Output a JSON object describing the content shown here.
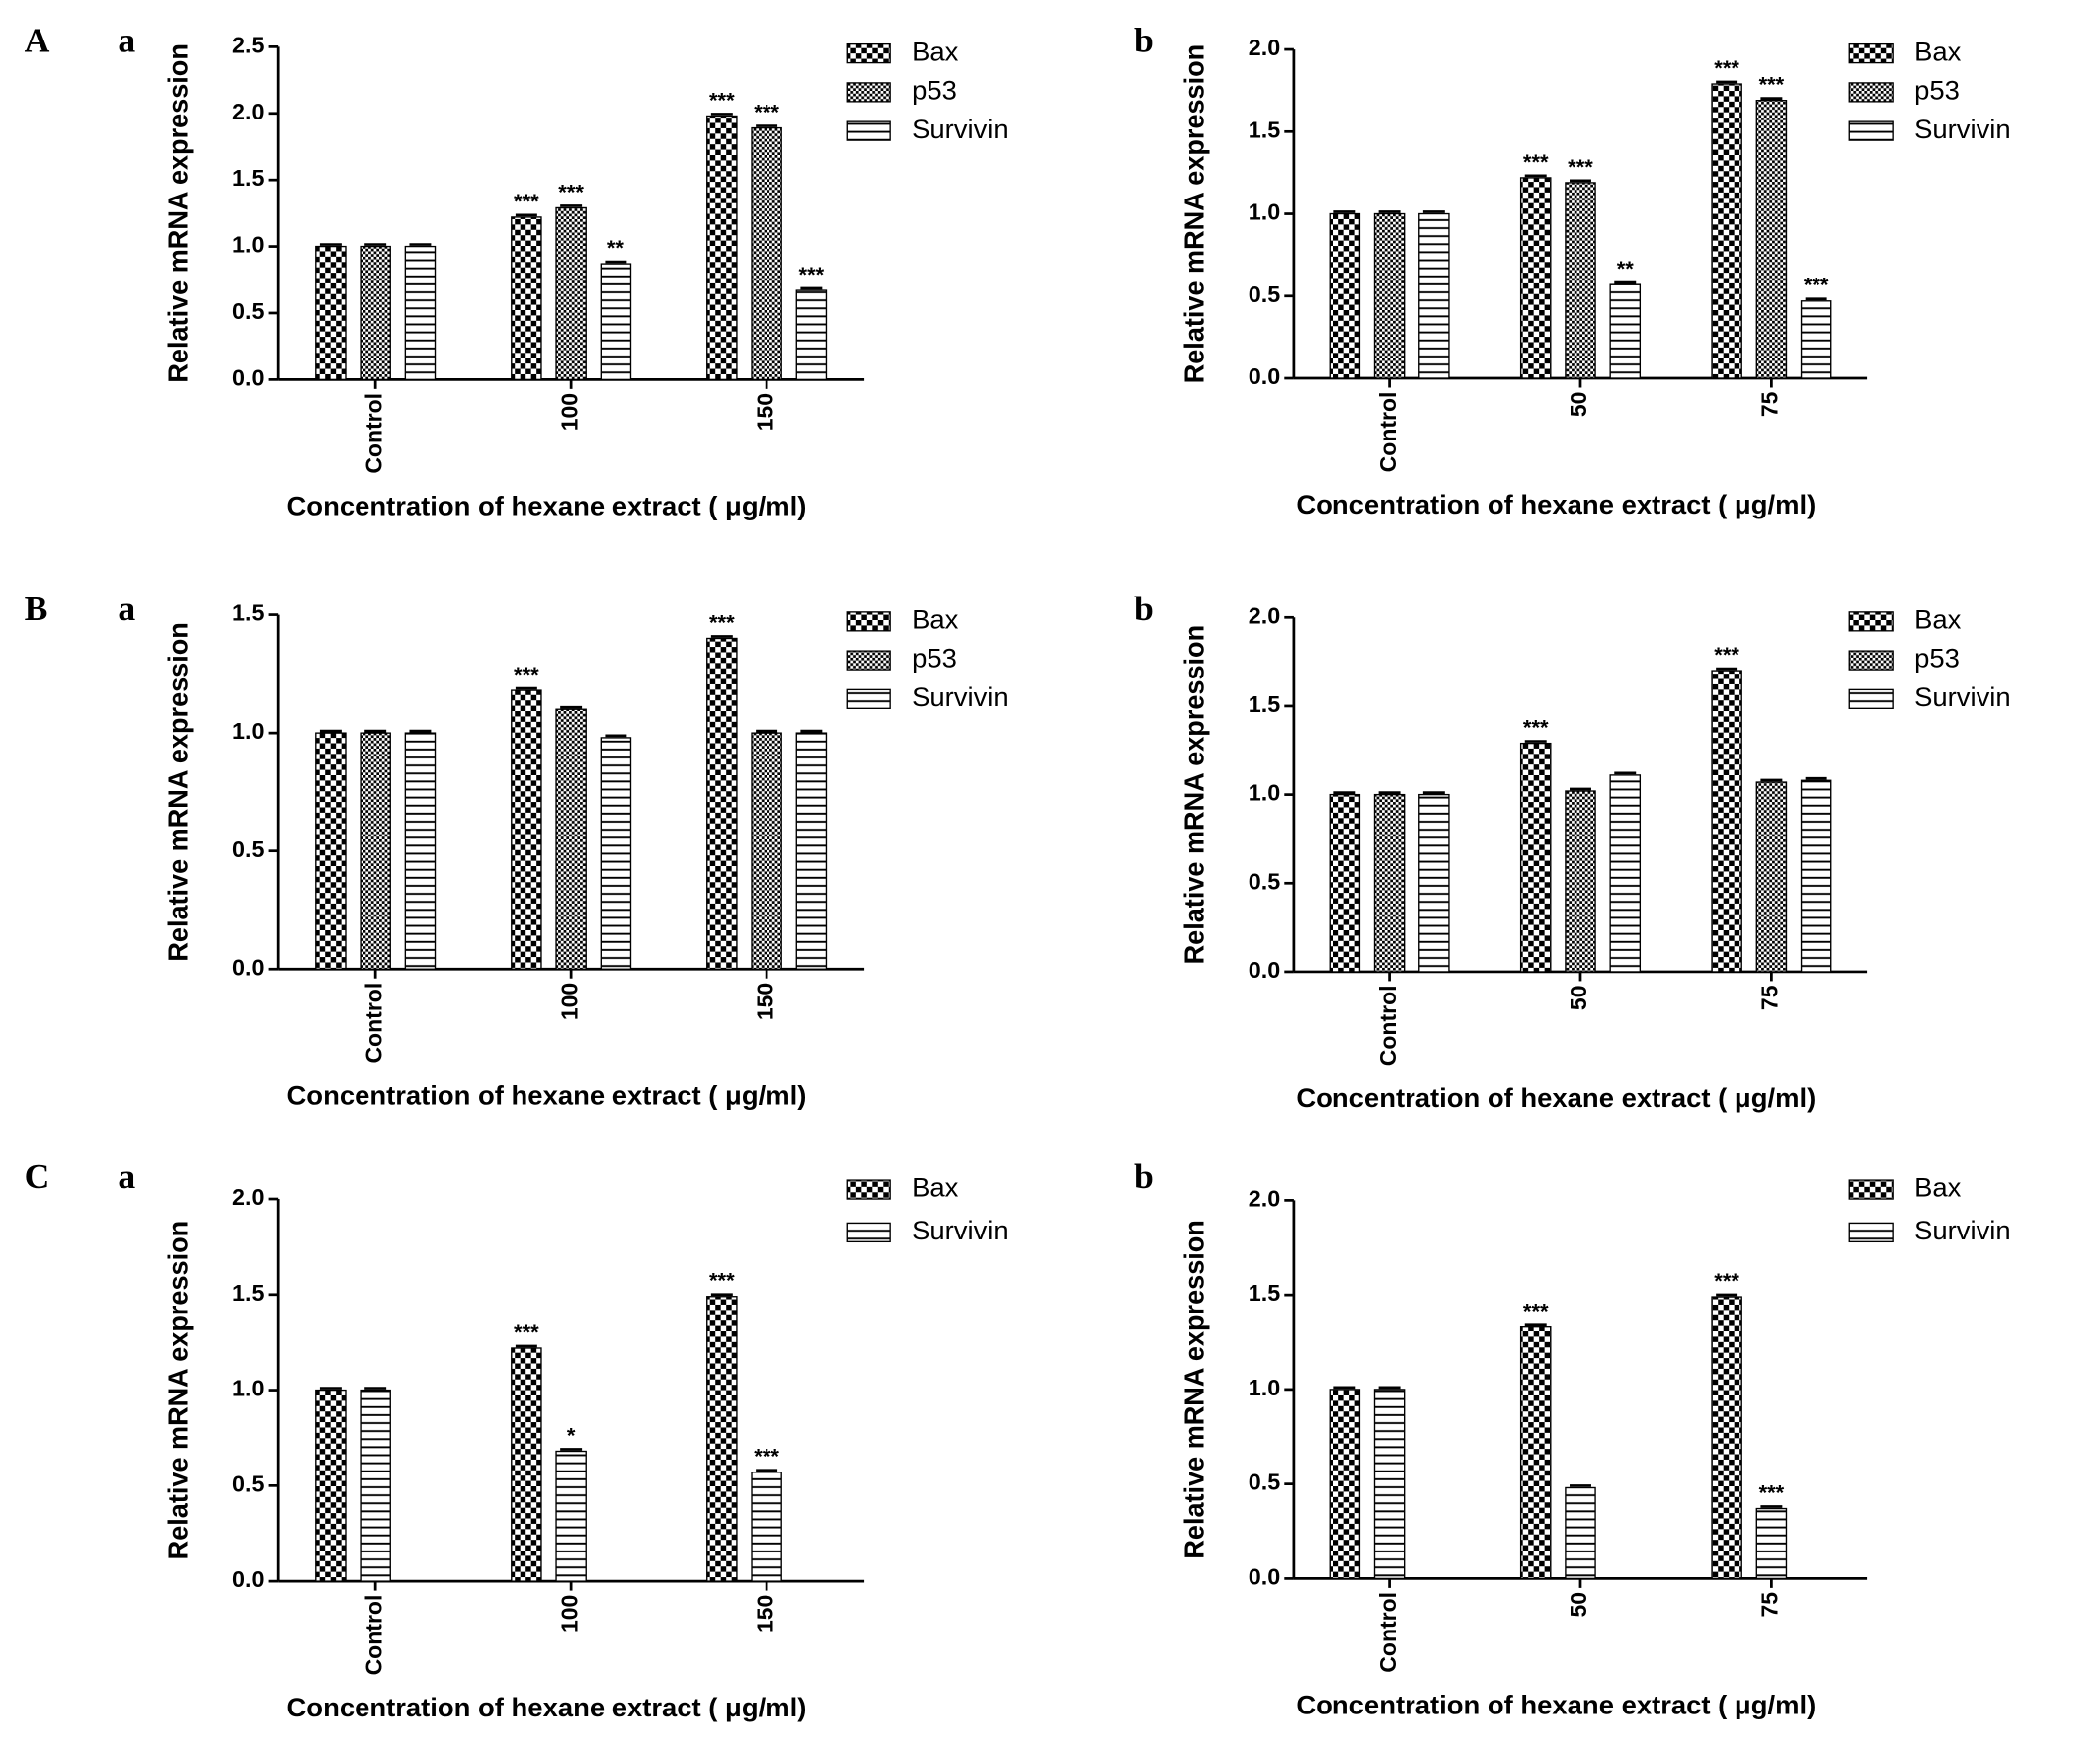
{
  "chart_data": [
    {
      "type": "bar",
      "panel": "A",
      "subpanel": "a",
      "x_label": "Concentration of hexane extract ( μg/ml)",
      "y_label": "Relative mRNA expression",
      "categories": [
        "Control",
        "100",
        "150"
      ],
      "series": [
        {
          "name": "Bax",
          "color": "#000000",
          "values": [
            1,
            1.22,
            1.98
          ],
          "significance": [
            null,
            "***",
            "***"
          ]
        },
        {
          "name": "p53",
          "color": "#000000",
          "values": [
            1,
            1.29,
            1.89
          ],
          "significance": [
            null,
            "***",
            "***"
          ]
        },
        {
          "name": "Survivin",
          "color": "#000000",
          "values": [
            1,
            0.87,
            0.67
          ],
          "significance": [
            null,
            "**",
            "***"
          ]
        }
      ],
      "ylim": [
        0,
        2.5
      ],
      "yticks": [
        {
          "value": 0,
          "label": "0.0"
        },
        0.5,
        {
          "value": 1,
          "label": "1.0"
        },
        1.5,
        {
          "value": 2,
          "label": "2.0"
        },
        2.5
      ]
    },
    {
      "type": "bar",
      "subpanel": "b",
      "x_label": "Concentration of hexane extract ( μg/ml)",
      "y_label": "Relative mRNA expression",
      "categories": [
        "Control",
        "50",
        "75"
      ],
      "series": [
        {
          "name": "Bax",
          "color": "#000000",
          "values": [
            1,
            1.22,
            1.79
          ],
          "significance": [
            null,
            "***",
            "***"
          ]
        },
        {
          "name": "p53",
          "color": "#000000",
          "values": [
            1,
            1.19,
            1.69
          ],
          "significance": [
            null,
            "***",
            "***"
          ]
        },
        {
          "name": "Survivin",
          "color": "#000000",
          "values": [
            1,
            0.57,
            0.47
          ],
          "significance": [
            null,
            "**",
            "***"
          ]
        }
      ],
      "ylim": [
        0,
        2
      ],
      "yticks": [
        {
          "value": 0,
          "label": "0.0"
        },
        0.5,
        {
          "value": 1,
          "label": "1.0"
        },
        1.5,
        {
          "value": 2,
          "label": "2.0"
        }
      ]
    },
    {
      "type": "bar",
      "panel": "B",
      "subpanel": "a",
      "x_label": "Concentration of hexane extract ( μg/ml)",
      "y_label": "Relative mRNA expression",
      "categories": [
        "Control",
        "100",
        "150"
      ],
      "series": [
        {
          "name": "Bax",
          "color": "#000000",
          "values": [
            1,
            1.18,
            1.4
          ],
          "significance": [
            null,
            "***",
            "***"
          ]
        },
        {
          "name": "p53",
          "color": "#000000",
          "values": [
            1,
            1.1,
            1.0
          ]
        },
        {
          "name": "Survivin",
          "color": "#000000",
          "values": [
            1,
            0.98,
            1.0
          ]
        }
      ],
      "ylim": [
        0,
        1.5
      ],
      "yticks": [
        {
          "value": 0,
          "label": "0.0"
        },
        0.5,
        {
          "value": 1,
          "label": "1.0"
        },
        1.5
      ]
    },
    {
      "type": "bar",
      "subpanel": "b",
      "x_label": "Concentration of hexane extract ( μg/ml)",
      "y_label": "Relative mRNA expression",
      "categories": [
        "Control",
        "50",
        "75"
      ],
      "series": [
        {
          "name": "Bax",
          "color": "#000000",
          "values": [
            1,
            1.29,
            1.7
          ],
          "significance": [
            null,
            "***",
            "***"
          ]
        },
        {
          "name": "p53",
          "color": "#000000",
          "values": [
            1,
            1.02,
            1.07
          ]
        },
        {
          "name": "Survivin",
          "color": "#000000",
          "values": [
            1,
            1.11,
            1.08
          ]
        }
      ],
      "ylim": [
        0,
        2
      ],
      "yticks": [
        {
          "value": 0,
          "label": "0.0"
        },
        0.5,
        {
          "value": 1,
          "label": "1.0"
        },
        1.5,
        {
          "value": 2,
          "label": "2.0"
        }
      ]
    },
    {
      "type": "bar",
      "panel": "C",
      "subpanel": "a",
      "x_label": "Concentration of hexane extract ( μg/ml)",
      "y_label": "Relative mRNA expression",
      "categories": [
        "Control",
        "100",
        "150"
      ],
      "series": [
        {
          "name": "Bax",
          "color": "#000000",
          "values": [
            1,
            1.22,
            1.49
          ],
          "significance": [
            null,
            "***",
            "***"
          ]
        },
        {
          "name": "Survivin",
          "color": "#000000",
          "values": [
            1,
            0.68,
            0.57
          ],
          "significance": [
            null,
            "*",
            "***"
          ]
        }
      ],
      "ylim": [
        0,
        2
      ],
      "yticks": [
        {
          "value": 0,
          "label": "0.0"
        },
        0.5,
        {
          "value": 1,
          "label": "1.0"
        },
        1.5,
        {
          "value": 2,
          "label": "2.0"
        }
      ]
    },
    {
      "type": "bar",
      "subpanel": "b",
      "x_label": "Concentration of hexane extract ( μg/ml)",
      "y_label": "Relative mRNA expression",
      "categories": [
        "Control",
        "50",
        "75"
      ],
      "series": [
        {
          "name": "Bax",
          "color": "#000000",
          "values": [
            1,
            1.33,
            1.49
          ],
          "significance": [
            null,
            "***",
            "***"
          ]
        },
        {
          "name": "Survivin",
          "color": "#000000",
          "values": [
            1,
            0.48,
            0.37
          ],
          "significance": [
            null,
            null,
            "***"
          ]
        }
      ],
      "ylim": [
        0,
        2
      ],
      "yticks": [
        {
          "value": 0,
          "label": "0.0"
        },
        0.5,
        {
          "value": 1,
          "label": "1.0"
        },
        1.5,
        {
          "value": 2,
          "label": "2.0"
        }
      ]
    }
  ]
}
